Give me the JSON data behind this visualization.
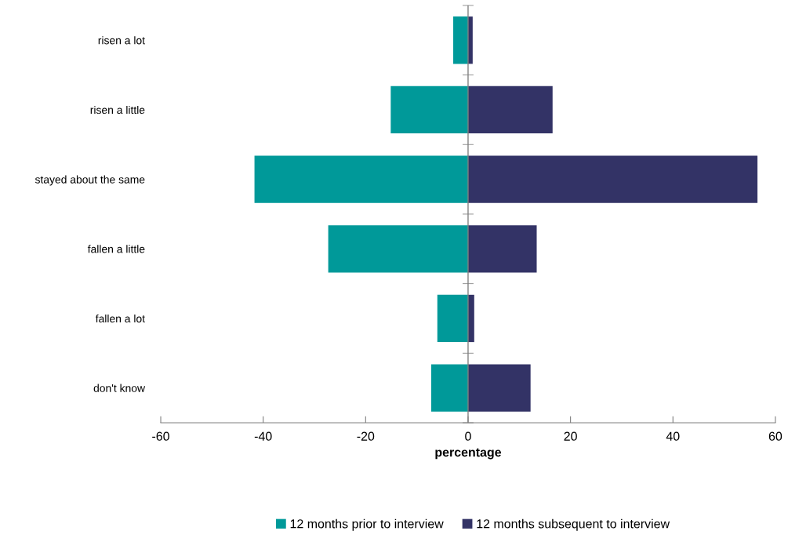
{
  "chart_data": {
    "type": "bar",
    "orientation": "horizontal",
    "stacked": true,
    "xlabel": "percentage",
    "categories": [
      "risen a lot",
      "risen a little",
      "stayed about the same",
      "fallen a little",
      "fallen a lot",
      "don't know"
    ],
    "series": [
      {
        "name": "12 months prior to interview",
        "color": "#009999",
        "values": [
          -2.9,
          -15.1,
          -41.7,
          -27.3,
          -6.0,
          -7.2
        ]
      },
      {
        "name": "12 months subsequent to interview",
        "color": "#333366",
        "values": [
          0.9,
          16.5,
          56.5,
          13.4,
          1.2,
          12.2
        ]
      }
    ],
    "xlim": [
      -60,
      60
    ],
    "xticks": [
      -60,
      -40,
      -20,
      0,
      20,
      40,
      60
    ],
    "grid": false,
    "ref_lines": [
      {
        "axis": "x",
        "value": 0,
        "color": "#808080"
      }
    ],
    "legend": "bottom"
  }
}
